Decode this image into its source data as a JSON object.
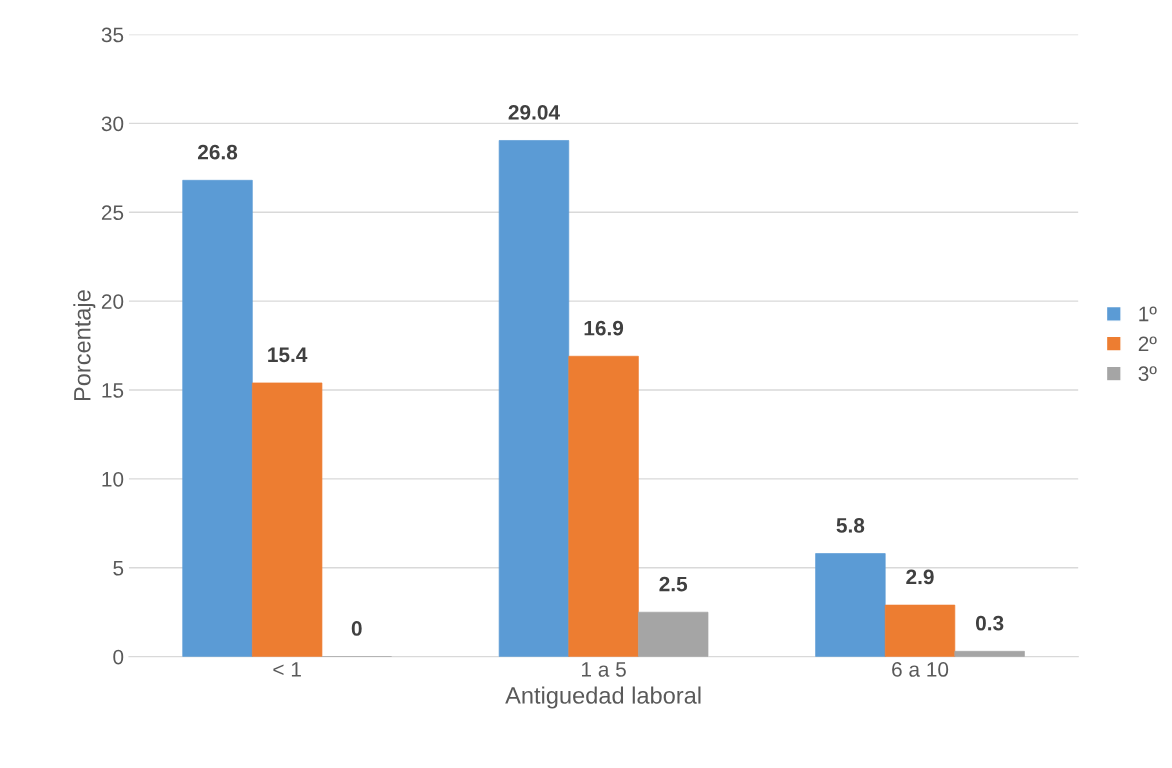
{
  "chart_data": {
    "type": "bar",
    "xlabel": "Antiguedad laboral",
    "ylabel": "Porcentaje",
    "categories": [
      "< 1",
      "1 a 5",
      "6 a 10"
    ],
    "series": [
      {
        "name": "1º",
        "color": "#5b9bd5",
        "values": [
          26.8,
          29.04,
          5.8
        ]
      },
      {
        "name": "2º",
        "color": "#ed7d31",
        "values": [
          15.4,
          16.9,
          2.9
        ]
      },
      {
        "name": "3º",
        "color": "#a5a5a5",
        "values": [
          0,
          2.5,
          0.3
        ]
      }
    ],
    "ylim": [
      0,
      35
    ],
    "yticks": [
      0,
      5,
      10,
      15,
      20,
      25,
      30,
      35
    ],
    "grid": "y",
    "legend": "right",
    "data_labels": true
  }
}
